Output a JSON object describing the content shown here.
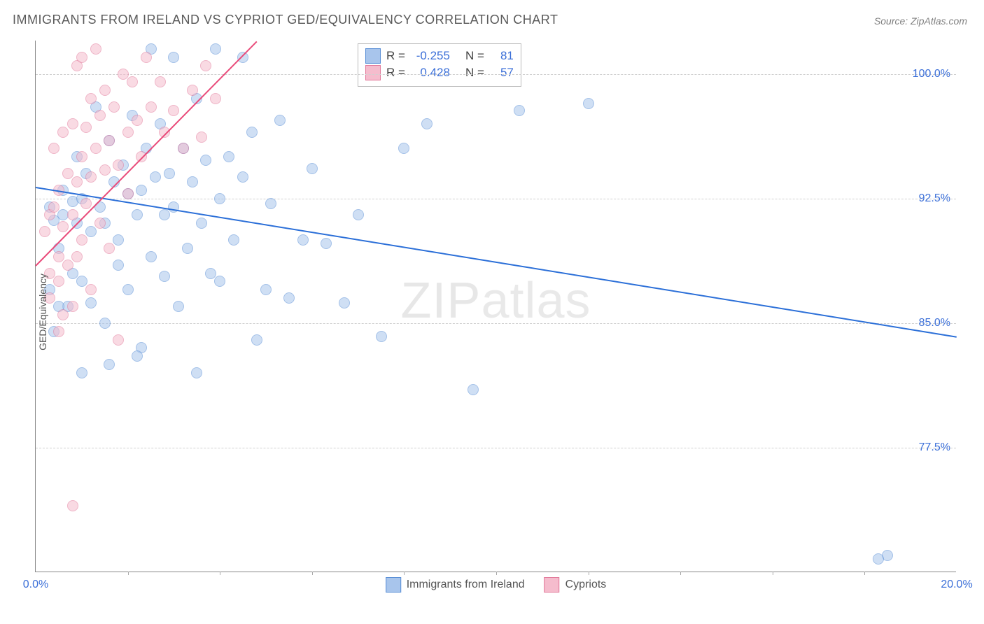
{
  "title": "IMMIGRANTS FROM IRELAND VS CYPRIOT GED/EQUIVALENCY CORRELATION CHART",
  "source": "Source: ZipAtlas.com",
  "y_axis_label": "GED/Equivalency",
  "watermark_bold": "ZIP",
  "watermark_thin": "atlas",
  "chart": {
    "type": "scatter",
    "xlim": [
      0,
      20
    ],
    "ylim": [
      70,
      102
    ],
    "x_ticks_major": [
      0,
      20
    ],
    "x_tick_labels": [
      "0.0%",
      "20.0%"
    ],
    "x_ticks_minor": [
      2,
      4,
      6,
      8,
      10,
      12,
      14,
      16,
      18
    ],
    "y_ticks": [
      77.5,
      85.0,
      92.5,
      100.0
    ],
    "y_tick_labels": [
      "77.5%",
      "85.0%",
      "92.5%",
      "100.0%"
    ],
    "background_color": "#ffffff",
    "grid_color": "#d0d0d0",
    "marker_size": 16,
    "marker_opacity": 0.55,
    "series": [
      {
        "name": "Immigrants from Ireland",
        "fill_color": "#a8c5ec",
        "stroke_color": "#5a8fd6",
        "reg_color": "#2b6fd8",
        "R": "-0.255",
        "N": "81",
        "regression": {
          "x1": 0,
          "y1": 93.2,
          "x2": 20,
          "y2": 84.2
        },
        "points": [
          [
            0.3,
            92.0
          ],
          [
            0.4,
            91.2
          ],
          [
            0.5,
            89.5
          ],
          [
            0.6,
            93.0
          ],
          [
            0.6,
            91.5
          ],
          [
            0.7,
            86.0
          ],
          [
            0.8,
            92.3
          ],
          [
            0.8,
            88.0
          ],
          [
            0.9,
            95.0
          ],
          [
            0.9,
            91.0
          ],
          [
            1.0,
            92.5
          ],
          [
            1.0,
            87.5
          ],
          [
            1.1,
            94.0
          ],
          [
            1.2,
            90.5
          ],
          [
            1.2,
            86.2
          ],
          [
            1.3,
            98.0
          ],
          [
            1.4,
            92.0
          ],
          [
            1.5,
            91.0
          ],
          [
            1.5,
            85.0
          ],
          [
            1.6,
            96.0
          ],
          [
            1.6,
            82.5
          ],
          [
            1.7,
            93.5
          ],
          [
            1.8,
            90.0
          ],
          [
            1.8,
            88.5
          ],
          [
            1.9,
            94.5
          ],
          [
            2.0,
            92.8
          ],
          [
            2.0,
            87.0
          ],
          [
            2.1,
            97.5
          ],
          [
            2.2,
            91.5
          ],
          [
            2.3,
            93.0
          ],
          [
            2.3,
            83.5
          ],
          [
            2.4,
            95.5
          ],
          [
            2.5,
            101.5
          ],
          [
            2.5,
            89.0
          ],
          [
            2.6,
            93.8
          ],
          [
            2.7,
            97.0
          ],
          [
            2.8,
            91.5
          ],
          [
            2.8,
            87.8
          ],
          [
            2.9,
            94.0
          ],
          [
            3.0,
            101.0
          ],
          [
            3.0,
            92.0
          ],
          [
            3.1,
            86.0
          ],
          [
            3.2,
            95.5
          ],
          [
            3.3,
            89.5
          ],
          [
            3.4,
            93.5
          ],
          [
            3.5,
            98.5
          ],
          [
            3.5,
            82.0
          ],
          [
            3.6,
            91.0
          ],
          [
            3.7,
            94.8
          ],
          [
            3.8,
            88.0
          ],
          [
            3.9,
            101.5
          ],
          [
            4.0,
            92.5
          ],
          [
            4.0,
            87.5
          ],
          [
            4.2,
            95.0
          ],
          [
            4.3,
            90.0
          ],
          [
            4.5,
            101.0
          ],
          [
            4.5,
            93.8
          ],
          [
            4.7,
            96.5
          ],
          [
            4.8,
            84.0
          ],
          [
            5.0,
            87.0
          ],
          [
            5.1,
            92.2
          ],
          [
            5.3,
            97.2
          ],
          [
            5.5,
            86.5
          ],
          [
            5.8,
            90.0
          ],
          [
            6.0,
            94.3
          ],
          [
            6.3,
            89.8
          ],
          [
            6.7,
            86.2
          ],
          [
            7.0,
            91.5
          ],
          [
            7.5,
            84.2
          ],
          [
            8.0,
            95.5
          ],
          [
            8.5,
            97.0
          ],
          [
            9.5,
            81.0
          ],
          [
            10.5,
            97.8
          ],
          [
            12.0,
            98.2
          ],
          [
            18.5,
            71.0
          ],
          [
            18.3,
            70.8
          ],
          [
            1.0,
            82.0
          ],
          [
            0.4,
            84.5
          ],
          [
            0.3,
            87.0
          ],
          [
            0.5,
            86.0
          ],
          [
            2.2,
            83.0
          ]
        ]
      },
      {
        "name": "Cypriots",
        "fill_color": "#f5bccd",
        "stroke_color": "#e27a9b",
        "reg_color": "#e94b7a",
        "R": "0.428",
        "N": "57",
        "regression": {
          "x1": 0,
          "y1": 88.5,
          "x2": 4.8,
          "y2": 102
        },
        "points": [
          [
            0.2,
            90.5
          ],
          [
            0.3,
            91.5
          ],
          [
            0.3,
            88.0
          ],
          [
            0.4,
            92.0
          ],
          [
            0.4,
            95.5
          ],
          [
            0.5,
            89.0
          ],
          [
            0.5,
            93.0
          ],
          [
            0.5,
            84.5
          ],
          [
            0.6,
            96.5
          ],
          [
            0.6,
            90.8
          ],
          [
            0.7,
            94.0
          ],
          [
            0.7,
            88.5
          ],
          [
            0.8,
            97.0
          ],
          [
            0.8,
            91.5
          ],
          [
            0.8,
            86.0
          ],
          [
            0.9,
            100.5
          ],
          [
            0.9,
            93.5
          ],
          [
            0.9,
            89.0
          ],
          [
            1.0,
            101.0
          ],
          [
            1.0,
            95.0
          ],
          [
            1.0,
            90.0
          ],
          [
            1.1,
            96.8
          ],
          [
            1.1,
            92.2
          ],
          [
            1.2,
            98.5
          ],
          [
            1.2,
            93.8
          ],
          [
            1.2,
            87.0
          ],
          [
            1.3,
            101.5
          ],
          [
            1.3,
            95.5
          ],
          [
            1.4,
            97.5
          ],
          [
            1.4,
            91.0
          ],
          [
            1.5,
            99.0
          ],
          [
            1.5,
            94.2
          ],
          [
            1.6,
            96.0
          ],
          [
            1.6,
            89.5
          ],
          [
            1.7,
            98.0
          ],
          [
            1.8,
            94.5
          ],
          [
            1.8,
            84.0
          ],
          [
            1.9,
            100.0
          ],
          [
            2.0,
            96.5
          ],
          [
            2.0,
            92.8
          ],
          [
            2.1,
            99.5
          ],
          [
            2.2,
            97.2
          ],
          [
            2.3,
            95.0
          ],
          [
            2.4,
            101.0
          ],
          [
            2.5,
            98.0
          ],
          [
            2.7,
            99.5
          ],
          [
            2.8,
            96.5
          ],
          [
            3.0,
            97.8
          ],
          [
            3.2,
            95.5
          ],
          [
            3.4,
            99.0
          ],
          [
            3.6,
            96.2
          ],
          [
            3.7,
            100.5
          ],
          [
            3.9,
            98.5
          ],
          [
            0.3,
            86.5
          ],
          [
            0.5,
            87.5
          ],
          [
            0.8,
            74.0
          ],
          [
            0.6,
            85.5
          ]
        ]
      }
    ]
  },
  "stats_box": {
    "rows": [
      {
        "swatch_fill": "#a8c5ec",
        "swatch_stroke": "#5a8fd6",
        "r_label": "R =",
        "r_val": "-0.255",
        "n_label": "N =",
        "n_val": "81"
      },
      {
        "swatch_fill": "#f5bccd",
        "swatch_stroke": "#e27a9b",
        "r_label": "R =",
        "r_val": "0.428",
        "n_label": "N =",
        "n_val": "57"
      }
    ]
  },
  "legend": [
    {
      "swatch_fill": "#a8c5ec",
      "swatch_stroke": "#5a8fd6",
      "label": "Immigrants from Ireland"
    },
    {
      "swatch_fill": "#f5bccd",
      "swatch_stroke": "#e27a9b",
      "label": "Cypriots"
    }
  ]
}
